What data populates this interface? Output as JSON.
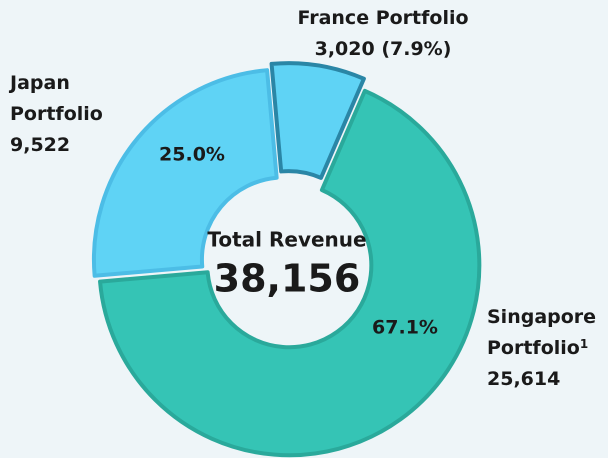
{
  "chart_data": {
    "type": "donut",
    "categories": [
      "Singapore Portfolio",
      "Japan Portfolio",
      "France Portfolio"
    ],
    "values": [
      25614,
      9522,
      3020
    ],
    "value_labels": [
      "25,614",
      "9,522",
      "3,020"
    ],
    "percentages": [
      67.1,
      25.0,
      7.9
    ],
    "percentage_labels": [
      "67.1%",
      "25.0%",
      "(7.9%)"
    ],
    "colors": [
      "#35c4b5",
      "#5fd3f5",
      "#5fd3f5"
    ],
    "strokes": [
      "#2aa99b",
      "#4cbde6",
      "#2a86a6"
    ],
    "footnote_marker": "1",
    "center_title": "Total Revenue",
    "total": 38156,
    "total_label": "38,156"
  }
}
